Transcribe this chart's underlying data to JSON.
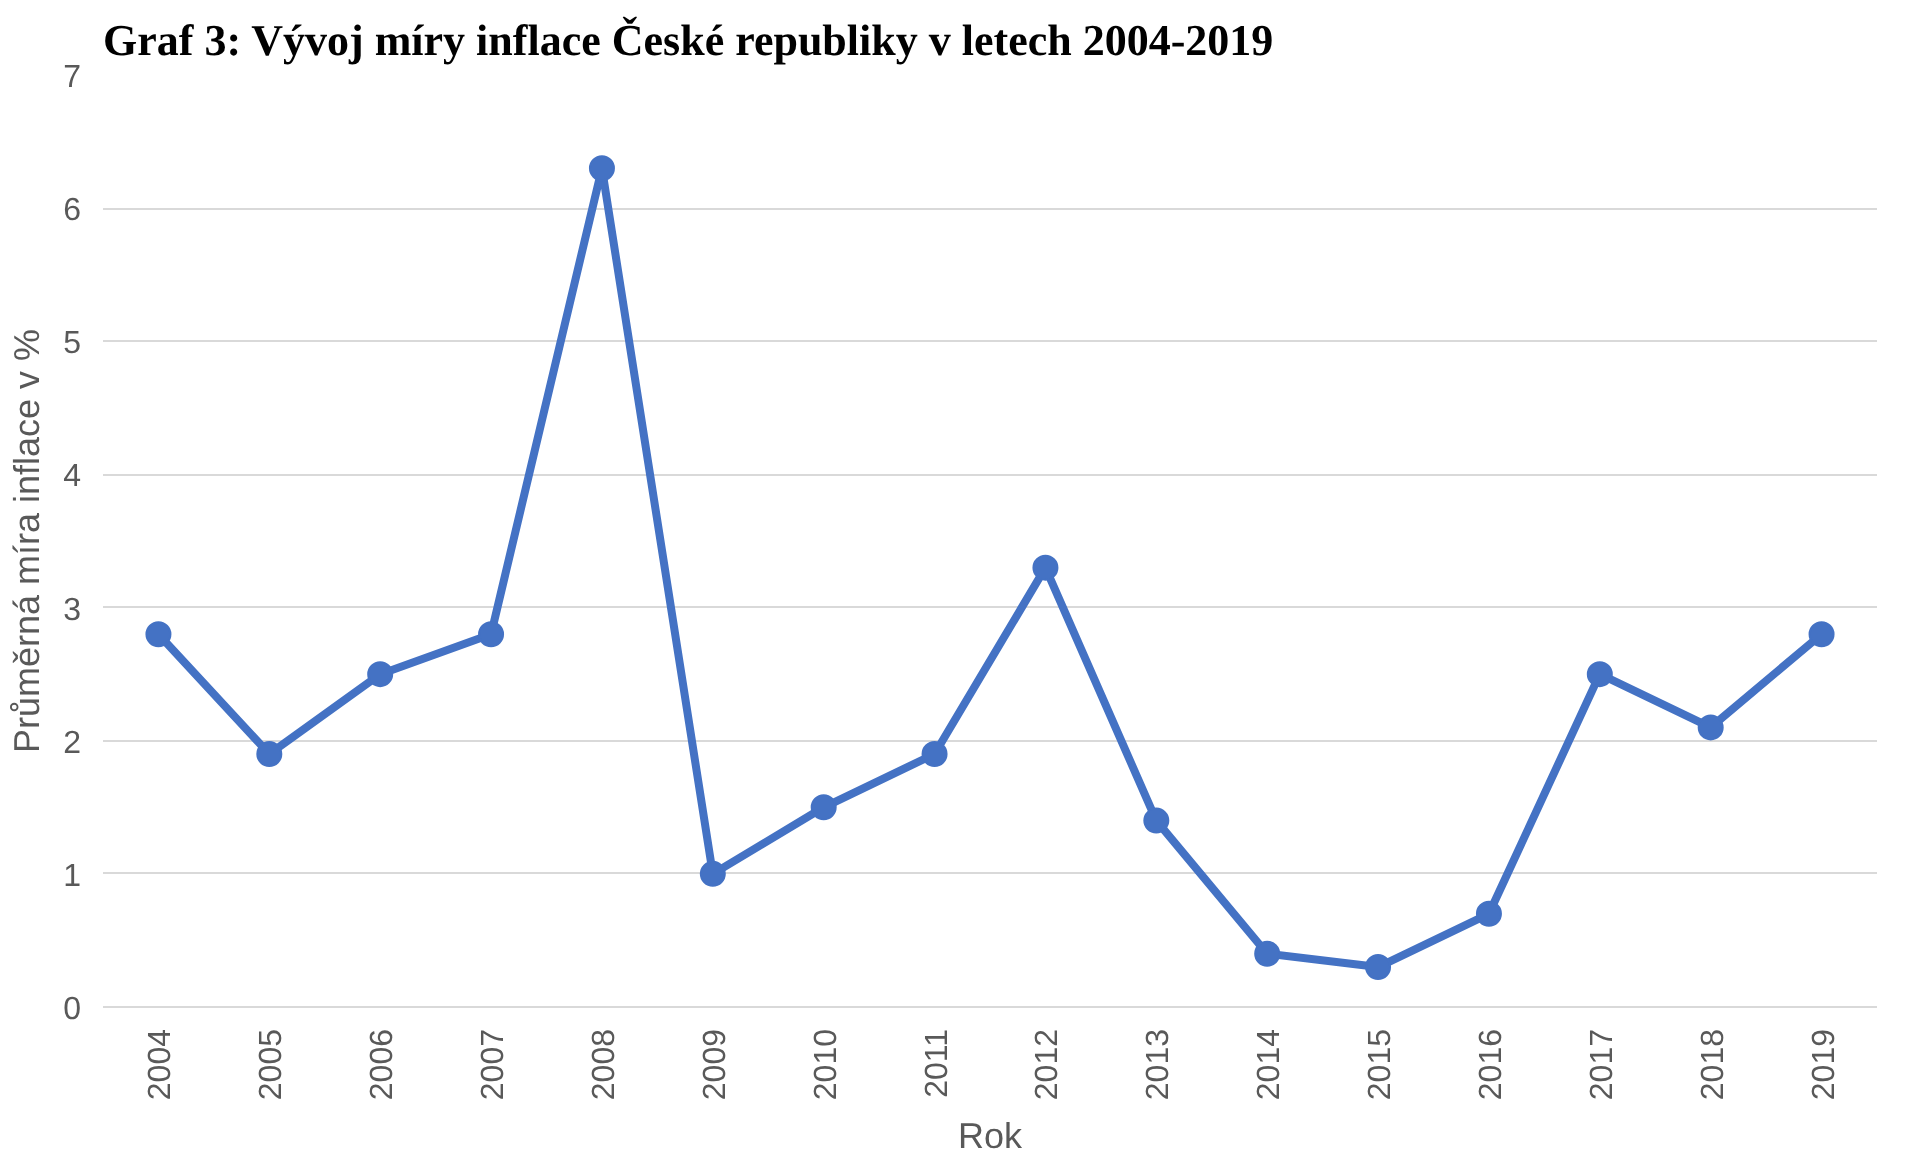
{
  "chart_data": {
    "type": "line",
    "title": "Graf 3: Vývoj míry inflace České republiky v letech 2004-2019",
    "xlabel": "Rok",
    "ylabel": "Průměrná míra inflace v %",
    "categories": [
      "2004",
      "2005",
      "2006",
      "2007",
      "2008",
      "2009",
      "2010",
      "2011",
      "2012",
      "2013",
      "2014",
      "2015",
      "2016",
      "2017",
      "2018",
      "2019"
    ],
    "series": [
      {
        "color": "#4472c4",
        "values": [
          2.8,
          1.9,
          2.5,
          2.8,
          6.3,
          1.0,
          1.5,
          1.9,
          3.3,
          1.4,
          0.4,
          0.3,
          0.7,
          2.5,
          2.1,
          2.8
        ]
      }
    ],
    "ylim": [
      0,
      7
    ],
    "yticks": [
      0,
      1,
      2,
      3,
      4,
      5,
      6,
      7
    ],
    "grid": "y",
    "marker": "circle",
    "line_style": "solid"
  }
}
